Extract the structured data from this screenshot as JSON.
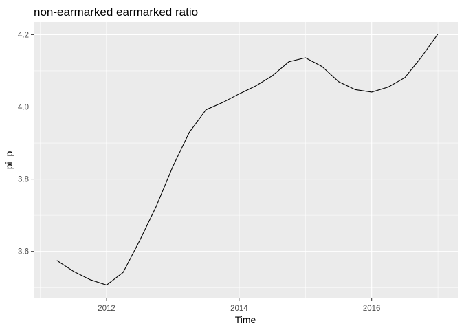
{
  "chart_data": {
    "type": "line",
    "title": "non-earmarked earmarked ratio",
    "xlabel": "Time",
    "ylabel": "pi_p",
    "xlim": [
      2010.9,
      2017.3
    ],
    "ylim": [
      3.47,
      4.235
    ],
    "x_ticks": [
      2012,
      2014,
      2016
    ],
    "x_tick_labels": [
      "2012",
      "2014",
      "2016"
    ],
    "y_ticks": [
      3.6,
      3.8,
      4.0,
      4.2
    ],
    "y_tick_labels": [
      "3.6",
      "3.8",
      "4.0",
      "4.2"
    ],
    "grid": true,
    "legend": "none",
    "series": [
      {
        "x": [
          2011.25,
          2011.5,
          2011.75,
          2012.0,
          2012.25,
          2012.5,
          2012.75,
          2013.0,
          2013.25,
          2013.5,
          2013.75,
          2014.0,
          2014.25,
          2014.5,
          2014.75,
          2015.0,
          2015.25,
          2015.5,
          2015.75,
          2016.0,
          2016.25,
          2016.5,
          2016.75,
          2017.0
        ],
        "values": [
          3.575,
          3.545,
          3.522,
          3.507,
          3.542,
          3.63,
          3.725,
          3.835,
          3.93,
          3.992,
          4.012,
          4.036,
          4.058,
          4.086,
          4.125,
          4.136,
          4.112,
          4.07,
          4.048,
          4.041,
          4.055,
          4.081,
          4.138,
          4.202
        ]
      }
    ],
    "colors": {
      "panel": "#ebebeb",
      "grid_major": "#ffffff",
      "line": "#000000",
      "tick_label": "#4d4d4d"
    }
  }
}
